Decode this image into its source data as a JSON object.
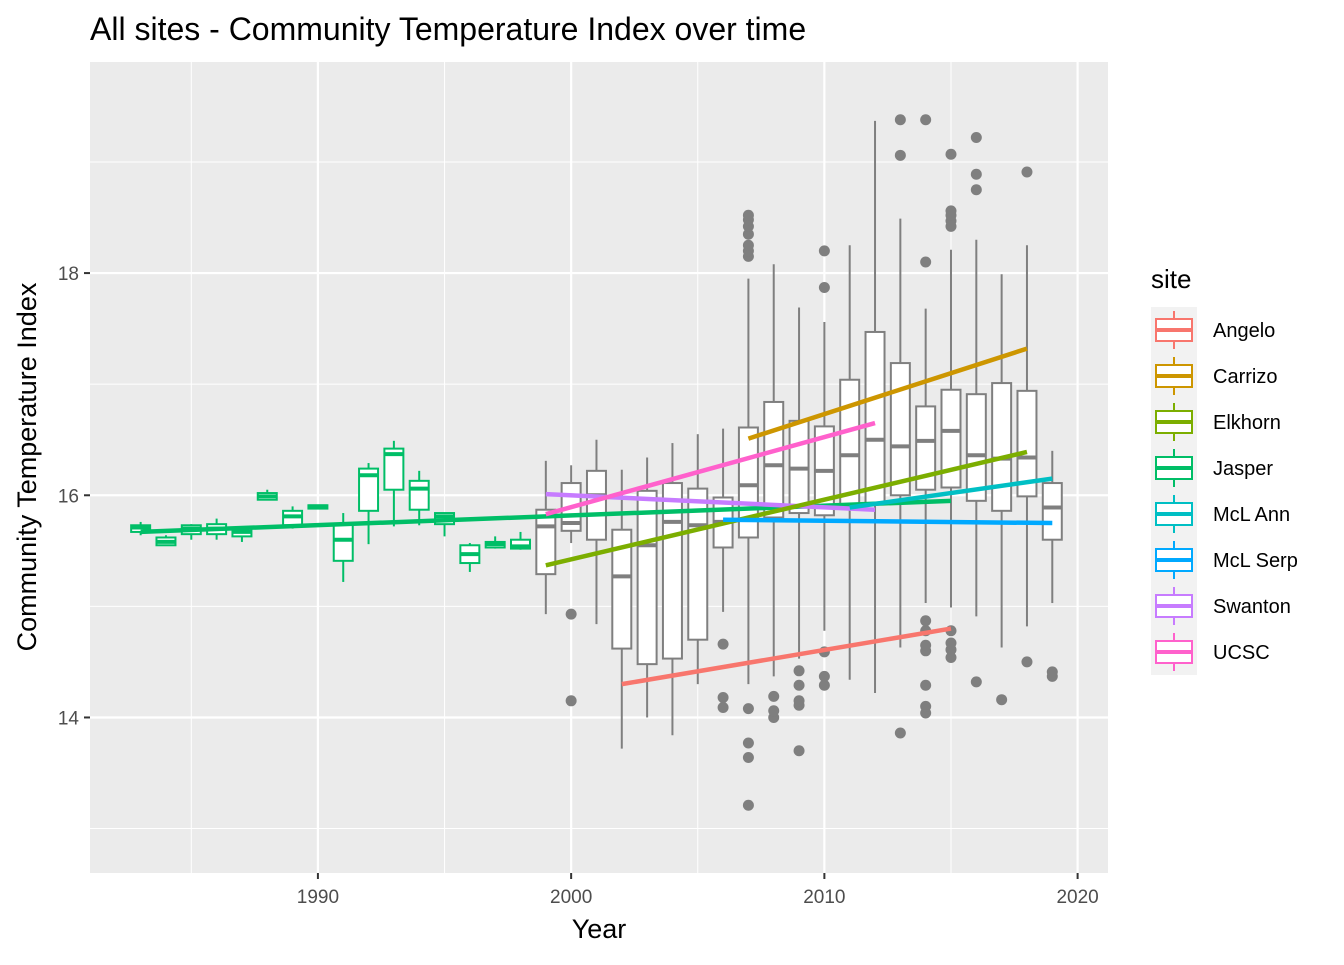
{
  "chart_data": {
    "type": "box+line",
    "title": "All sites - Community Temperature Index over time",
    "xlabel": "Year",
    "ylabel": "Community Temperature Index",
    "xlim": [
      1981,
      2021.2
    ],
    "ylim": [
      12.6,
      19.9
    ],
    "x_ticks": [
      1990,
      2000,
      2010,
      2020
    ],
    "x_tick_labels": [
      "1990",
      "2000",
      "2010",
      "2020"
    ],
    "x_minor_ticks": [
      1985,
      1995,
      2005,
      2015
    ],
    "y_ticks": [
      14,
      16,
      18
    ],
    "y_tick_labels": [
      "14",
      "16",
      "18"
    ],
    "y_minor_ticks": [
      13,
      15,
      17,
      19
    ],
    "grid": true,
    "legend": {
      "title": "site",
      "position": "right",
      "entries": [
        "Angelo",
        "Carrizo",
        "Elkhorn",
        "Jasper",
        "McL Ann",
        "McL Serp",
        "Swanton",
        "UCSC"
      ]
    },
    "colors": {
      "Angelo": "#F8766D",
      "Carrizo": "#CD9600",
      "Elkhorn": "#7CAE00",
      "Jasper": "#00BE67",
      "McL Ann": "#00BFC4",
      "McL Serp": "#00A9FF",
      "Swanton": "#C77CFF",
      "UCSC": "#FF61CC",
      "All": "#7f7f7f"
    },
    "boxes": [
      {
        "group": "Jasper",
        "x": 1983,
        "low": 15.64,
        "q1": 15.67,
        "med": 15.71,
        "q3": 15.73,
        "high": 15.76,
        "outliers": []
      },
      {
        "group": "Jasper",
        "x": 1984,
        "low": 15.55,
        "q1": 15.55,
        "med": 15.58,
        "q3": 15.62,
        "high": 15.64,
        "outliers": []
      },
      {
        "group": "Jasper",
        "x": 1985,
        "low": 15.6,
        "q1": 15.65,
        "med": 15.7,
        "q3": 15.73,
        "high": 15.74,
        "outliers": []
      },
      {
        "group": "Jasper",
        "x": 1986,
        "low": 15.6,
        "q1": 15.65,
        "med": 15.7,
        "q3": 15.74,
        "high": 15.79,
        "outliers": []
      },
      {
        "group": "Jasper",
        "x": 1987,
        "low": 15.58,
        "q1": 15.63,
        "med": 15.67,
        "q3": 15.7,
        "high": 15.72,
        "outliers": []
      },
      {
        "group": "Jasper",
        "x": 1988,
        "low": 15.96,
        "q1": 15.96,
        "med": 15.99,
        "q3": 16.02,
        "high": 16.05,
        "outliers": []
      },
      {
        "group": "Jasper",
        "x": 1989,
        "low": 15.7,
        "q1": 15.73,
        "med": 15.81,
        "q3": 15.86,
        "high": 15.9,
        "outliers": []
      },
      {
        "group": "Jasper",
        "x": 1990,
        "low": 15.88,
        "q1": 15.88,
        "med": 15.9,
        "q3": 15.91,
        "high": 15.91,
        "outliers": []
      },
      {
        "group": "Jasper",
        "x": 1991,
        "low": 15.22,
        "q1": 15.41,
        "med": 15.6,
        "q3": 15.74,
        "high": 15.84,
        "outliers": []
      },
      {
        "group": "Jasper",
        "x": 1992,
        "low": 15.56,
        "q1": 15.86,
        "med": 16.18,
        "q3": 16.24,
        "high": 16.29,
        "outliers": []
      },
      {
        "group": "Jasper",
        "x": 1993,
        "low": 15.72,
        "q1": 16.05,
        "med": 16.37,
        "q3": 16.42,
        "high": 16.49,
        "outliers": []
      },
      {
        "group": "Jasper",
        "x": 1994,
        "low": 15.73,
        "q1": 15.87,
        "med": 16.06,
        "q3": 16.13,
        "high": 16.22,
        "outliers": []
      },
      {
        "group": "Jasper",
        "x": 1995,
        "low": 15.63,
        "q1": 15.74,
        "med": 15.81,
        "q3": 15.84,
        "high": 15.84,
        "outliers": []
      },
      {
        "group": "Jasper",
        "x": 1996,
        "low": 15.31,
        "q1": 15.39,
        "med": 15.47,
        "q3": 15.55,
        "high": 15.57,
        "outliers": []
      },
      {
        "group": "Jasper",
        "x": 1997,
        "low": 15.52,
        "q1": 15.53,
        "med": 15.56,
        "q3": 15.58,
        "high": 15.63,
        "outliers": []
      },
      {
        "group": "Jasper",
        "x": 1998,
        "low": 15.51,
        "q1": 15.52,
        "med": 15.54,
        "q3": 15.6,
        "high": 15.67,
        "outliers": []
      },
      {
        "group": "All",
        "x": 1999,
        "low": 14.93,
        "q1": 15.29,
        "med": 15.72,
        "q3": 15.87,
        "high": 16.31,
        "outliers": []
      },
      {
        "group": "All",
        "x": 2000,
        "low": 15.57,
        "q1": 15.68,
        "med": 15.75,
        "q3": 16.11,
        "high": 16.27,
        "outliers": [
          14.15,
          14.93
        ]
      },
      {
        "group": "All",
        "x": 2001,
        "low": 14.84,
        "q1": 15.6,
        "med": 16.0,
        "q3": 16.22,
        "high": 16.5,
        "outliers": []
      },
      {
        "group": "All",
        "x": 2002,
        "low": 13.72,
        "q1": 14.62,
        "med": 15.27,
        "q3": 15.69,
        "high": 16.23,
        "outliers": []
      },
      {
        "group": "All",
        "x": 2003,
        "low": 14.0,
        "q1": 14.48,
        "med": 15.55,
        "q3": 16.04,
        "high": 16.34,
        "outliers": []
      },
      {
        "group": "All",
        "x": 2004,
        "low": 13.84,
        "q1": 14.53,
        "med": 15.76,
        "q3": 16.11,
        "high": 16.47,
        "outliers": []
      },
      {
        "group": "All",
        "x": 2005,
        "low": 14.3,
        "q1": 14.7,
        "med": 15.73,
        "q3": 16.06,
        "high": 16.55,
        "outliers": []
      },
      {
        "group": "All",
        "x": 2006,
        "low": 14.95,
        "q1": 15.53,
        "med": 15.76,
        "q3": 15.98,
        "high": 16.6,
        "outliers": [
          14.09,
          14.18,
          14.66
        ]
      },
      {
        "group": "All",
        "x": 2007,
        "low": 14.3,
        "q1": 15.62,
        "med": 16.09,
        "q3": 16.61,
        "high": 17.95,
        "outliers": [
          13.21,
          13.64,
          13.77,
          14.08,
          18.15,
          18.2,
          18.25,
          18.35,
          18.42,
          18.48,
          18.52
        ]
      },
      {
        "group": "All",
        "x": 2008,
        "low": 14.37,
        "q1": 15.8,
        "med": 16.27,
        "q3": 16.84,
        "high": 18.08,
        "outliers": [
          14.0,
          14.06,
          14.19
        ]
      },
      {
        "group": "All",
        "x": 2009,
        "low": 14.53,
        "q1": 15.84,
        "med": 16.24,
        "q3": 16.67,
        "high": 17.69,
        "outliers": [
          13.7,
          14.11,
          14.15,
          14.29,
          14.42
        ]
      },
      {
        "group": "All",
        "x": 2010,
        "low": 14.78,
        "q1": 15.82,
        "med": 16.22,
        "q3": 16.62,
        "high": 17.56,
        "outliers": [
          14.29,
          14.37,
          14.59,
          17.87,
          18.2
        ]
      },
      {
        "group": "All",
        "x": 2011,
        "low": 14.34,
        "q1": 15.9,
        "med": 16.36,
        "q3": 17.04,
        "high": 18.25,
        "outliers": []
      },
      {
        "group": "All",
        "x": 2012,
        "low": 14.22,
        "q1": 15.92,
        "med": 16.5,
        "q3": 17.47,
        "high": 19.37,
        "outliers": []
      },
      {
        "group": "All",
        "x": 2013,
        "low": 14.63,
        "q1": 16.0,
        "med": 16.44,
        "q3": 17.19,
        "high": 18.49,
        "outliers": [
          13.86,
          19.06,
          19.38
        ]
      },
      {
        "group": "All",
        "x": 2014,
        "low": 15.03,
        "q1": 16.05,
        "med": 16.49,
        "q3": 16.8,
        "high": 17.68,
        "outliers": [
          14.04,
          14.1,
          14.29,
          14.6,
          14.65,
          14.78,
          14.87,
          18.1,
          19.38
        ]
      },
      {
        "group": "All",
        "x": 2015,
        "low": 14.99,
        "q1": 16.07,
        "med": 16.58,
        "q3": 16.95,
        "high": 18.21,
        "outliers": [
          14.54,
          14.61,
          14.67,
          14.78,
          18.42,
          18.47,
          18.52,
          18.56,
          19.07
        ]
      },
      {
        "group": "All",
        "x": 2016,
        "low": 14.91,
        "q1": 15.95,
        "med": 16.36,
        "q3": 16.91,
        "high": 18.3,
        "outliers": [
          14.32,
          18.75,
          18.89,
          19.22
        ]
      },
      {
        "group": "All",
        "x": 2017,
        "low": 14.63,
        "q1": 15.86,
        "med": 16.33,
        "q3": 17.01,
        "high": 17.99,
        "outliers": [
          14.16
        ]
      },
      {
        "group": "All",
        "x": 2018,
        "low": 14.82,
        "q1": 15.99,
        "med": 16.34,
        "q3": 16.94,
        "high": 18.25,
        "outliers": [
          14.5,
          18.91
        ]
      },
      {
        "group": "All",
        "x": 2019,
        "low": 15.03,
        "q1": 15.6,
        "med": 15.89,
        "q3": 16.11,
        "high": 16.4,
        "outliers": [
          14.37,
          14.41
        ]
      }
    ],
    "trend_lines": [
      {
        "site": "Jasper",
        "x": [
          1983,
          2015
        ],
        "y": [
          15.67,
          15.95
        ]
      },
      {
        "site": "Swanton",
        "x": [
          1999,
          2012
        ],
        "y": [
          16.01,
          15.87
        ]
      },
      {
        "site": "UCSC",
        "x": [
          1999,
          2012
        ],
        "y": [
          15.83,
          16.65
        ]
      },
      {
        "site": "Elkhorn",
        "x": [
          1999,
          2018
        ],
        "y": [
          15.37,
          16.39
        ]
      },
      {
        "site": "Angelo",
        "x": [
          2002,
          2015
        ],
        "y": [
          14.3,
          14.8
        ]
      },
      {
        "site": "McL Serp",
        "x": [
          2006,
          2019
        ],
        "y": [
          15.78,
          15.75
        ]
      },
      {
        "site": "Carrizo",
        "x": [
          2007,
          2018
        ],
        "y": [
          16.51,
          17.32
        ]
      },
      {
        "site": "McL Ann",
        "x": [
          2011,
          2019
        ],
        "y": [
          15.89,
          16.15
        ]
      }
    ]
  }
}
